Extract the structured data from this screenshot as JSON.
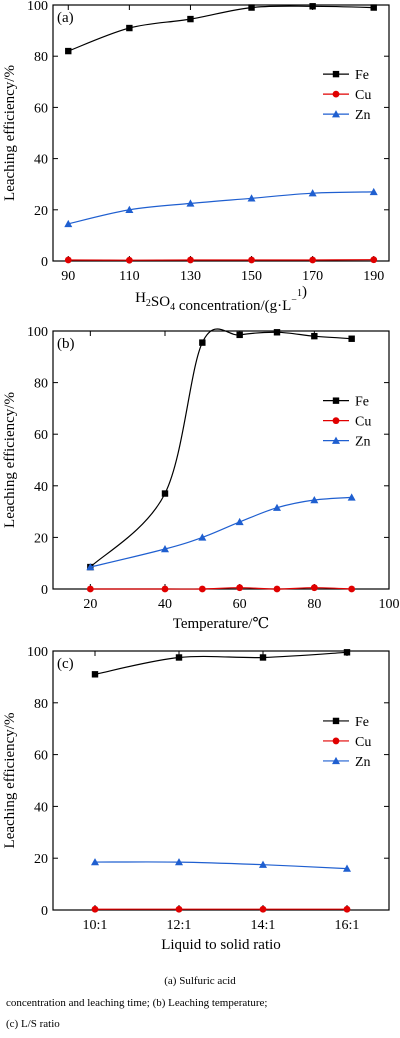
{
  "chart_data": [
    {
      "type": "line",
      "panel_label": "(a)",
      "ylabel": "Leaching efficiency/%",
      "xlabel": "H2SO4 concentration/(g·L⁻¹)",
      "categories": [
        "90",
        "110",
        "130",
        "150",
        "170",
        "190"
      ],
      "xlim": [
        85,
        195
      ],
      "ylim": [
        0,
        100
      ],
      "yticks": [
        0,
        20,
        40,
        60,
        80,
        100
      ],
      "legend_position": "right-middle",
      "grid": false,
      "series": [
        {
          "name": "Fe",
          "color": "#000000",
          "marker": "square",
          "x": [
            90,
            110,
            130,
            150,
            170,
            190
          ],
          "values": [
            82,
            91,
            94.5,
            99,
            99.5,
            99
          ]
        },
        {
          "name": "Cu",
          "color": "#e00000",
          "marker": "circle",
          "x": [
            90,
            110,
            130,
            150,
            170,
            190
          ],
          "values": [
            0.4,
            0.3,
            0.4,
            0.4,
            0.4,
            0.5
          ]
        },
        {
          "name": "Zn",
          "color": "#1f5fd0",
          "marker": "triangle",
          "x": [
            90,
            110,
            130,
            150,
            170,
            190
          ],
          "values": [
            14.5,
            20,
            22.5,
            24.5,
            26.5,
            27
          ]
        }
      ]
    },
    {
      "type": "line",
      "panel_label": "(b)",
      "ylabel": "Leaching efficiency/%",
      "xlabel": "Temperature/℃",
      "categories": [
        "20",
        "40",
        "60",
        "80",
        "100"
      ],
      "xlim": [
        10,
        100
      ],
      "ylim": [
        0,
        100
      ],
      "yticks": [
        0,
        20,
        40,
        60,
        80,
        100
      ],
      "legend_position": "right-middle",
      "grid": false,
      "series": [
        {
          "name": "Fe",
          "color": "#000000",
          "marker": "square",
          "x": [
            20,
            40,
            50,
            60,
            70,
            80,
            90
          ],
          "values": [
            8.5,
            37,
            95.5,
            98.5,
            99.5,
            98,
            97
          ]
        },
        {
          "name": "Cu",
          "color": "#e00000",
          "marker": "circle",
          "x": [
            20,
            40,
            50,
            60,
            70,
            80,
            90
          ],
          "values": [
            0,
            0,
            0,
            0.5,
            0,
            0.5,
            0
          ]
        },
        {
          "name": "Zn",
          "color": "#1f5fd0",
          "marker": "triangle",
          "x": [
            20,
            40,
            50,
            60,
            70,
            80,
            90
          ],
          "values": [
            8.5,
            15.5,
            20,
            26,
            31.5,
            34.5,
            35.5
          ]
        }
      ]
    },
    {
      "type": "line",
      "panel_label": "(c)",
      "ylabel": "Leaching efficiency/%",
      "xlabel": "Liquid to solid ratio",
      "categories": [
        "10:1",
        "12:1",
        "14:1",
        "16:1"
      ],
      "xlim": [
        9,
        17
      ],
      "ylim": [
        0,
        100
      ],
      "yticks": [
        0,
        20,
        40,
        60,
        80,
        100
      ],
      "legend_position": "right-middle",
      "grid": false,
      "series": [
        {
          "name": "Fe",
          "color": "#000000",
          "marker": "square",
          "x": [
            10,
            12,
            14,
            16
          ],
          "values": [
            91,
            97.5,
            97.5,
            99.5
          ]
        },
        {
          "name": "Cu",
          "color": "#e00000",
          "marker": "circle",
          "x": [
            10,
            12,
            14,
            16
          ],
          "values": [
            0.3,
            0.3,
            0.3,
            0.3
          ]
        },
        {
          "name": "Zn",
          "color": "#1f5fd0",
          "marker": "triangle",
          "x": [
            10,
            12,
            14,
            16
          ],
          "values": [
            18.5,
            18.5,
            17.5,
            16
          ]
        }
      ]
    }
  ],
  "caption": {
    "line1": "(a) Sulfuric acid",
    "line2": "concentration and leaching time; (b) Leaching temperature;",
    "line3": "(c) L/S ratio"
  }
}
